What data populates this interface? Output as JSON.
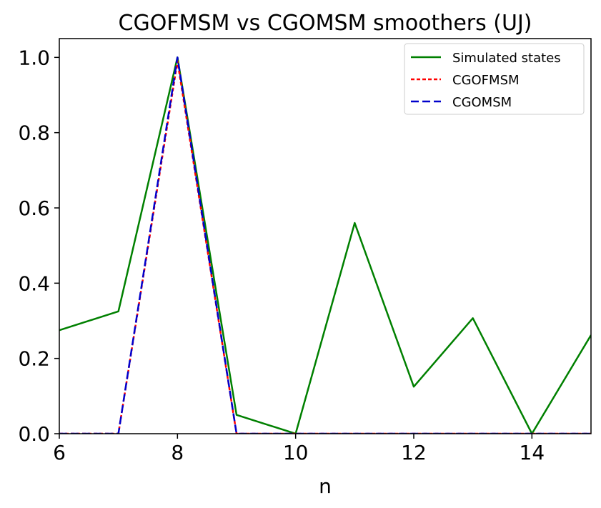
{
  "chart_data": {
    "type": "line",
    "title": "CGOFMSM vs CGOMSM smoothers (UJ)",
    "xlabel": "n",
    "ylabel": "",
    "xlim": [
      6,
      15
    ],
    "ylim": [
      0,
      1.05
    ],
    "xticks": [
      6,
      8,
      10,
      12,
      14
    ],
    "yticks": [
      0.0,
      0.2,
      0.4,
      0.6,
      0.8,
      1.0
    ],
    "xtick_labels": [
      "6",
      "8",
      "10",
      "12",
      "14"
    ],
    "ytick_labels": [
      "0.0",
      "0.2",
      "0.4",
      "0.6",
      "0.8",
      "1.0"
    ],
    "grid": false,
    "legend_position": "top-right",
    "series": [
      {
        "name": "Simulated states",
        "color": "#008000",
        "dash": "solid",
        "x": [
          6,
          7,
          8,
          9,
          10,
          11,
          12,
          13,
          14,
          15
        ],
        "y": [
          0.275,
          0.325,
          1.0,
          0.05,
          0.0,
          0.56,
          0.125,
          0.307,
          0.0,
          0.262
        ]
      },
      {
        "name": "CGOFMSM",
        "color": "#ff0000",
        "dash": "dotted",
        "x": [
          6,
          7,
          8,
          9,
          10,
          11,
          12,
          13,
          14,
          15
        ],
        "y": [
          0.0,
          0.0,
          0.99,
          0.0,
          0.0,
          0.0,
          0.0,
          0.0,
          0.0,
          0.0
        ]
      },
      {
        "name": "CGOMSM",
        "color": "#0000cc",
        "dash": "dashed",
        "x": [
          6,
          7,
          8,
          9,
          10,
          11,
          12,
          13,
          14,
          15
        ],
        "y": [
          0.0,
          0.0,
          1.0,
          0.0,
          0.0,
          0.0,
          0.0,
          0.0,
          0.0,
          0.0
        ]
      }
    ]
  }
}
